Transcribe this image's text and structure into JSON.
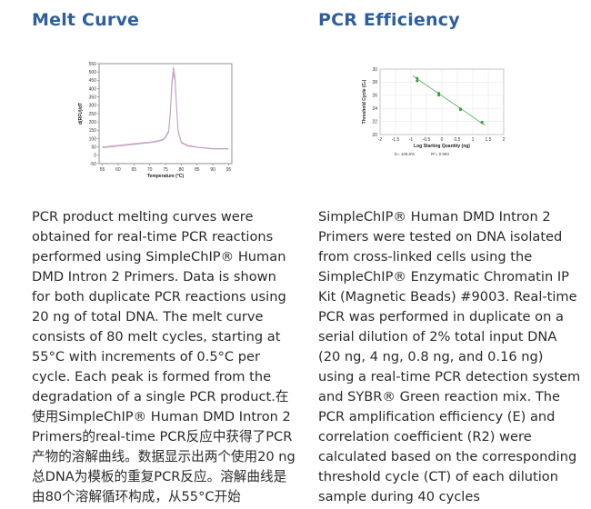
{
  "melt_curve": {
    "title": "Melt Curve",
    "description": "PCR product melting curves were obtained for real-time PCR reactions performed using SimpleChIP® Human DMD Intron 2 Primers. Data is shown for both duplicate PCR reactions using 20 ng of total DNA. The melt curve consists of 80 melt cycles, starting at 55°C with increments of 0.5°C per cycle. Each peak is formed from the degradation of a single PCR product.在使用SimpleChIP® Human DMD Intron 2 Primers的real-time PCR反应中获得了PCR产物的溶解曲线。数据显示出两个使用20 ng总DNA为模板的重复PCR反应。溶解曲线是由80个溶解循环构成，从55°C开始"
  },
  "pcr_efficiency": {
    "title": "PCR Efficiency",
    "description": "SimpleChIP® Human DMD Intron 2 Primers were tested on DNA isolated from cross-linked cells using the SimpleChIP® Enzymatic Chromatin IP Kit (Magnetic Beads) #9003. Real-time PCR was performed in duplicate on a serial dilution of 2% total input DNA (20 ng, 4 ng, 0.8 ng, and 0.16 ng) using a real-time PCR detection system and SYBR® Green reaction mix. The PCR amplification efficiency (E) and correlation coefficient (R2) were calculated based on the corresponding threshold cycle (CT) of each dilution sample during 40 cycles",
    "stats": {
      "efficiency": "E= 108.6%",
      "r2": "R²= 0.993"
    }
  },
  "colors": {
    "heading": "#2e5f9c",
    "melt_line": "#d7a3b8",
    "efficiency_line": "#5fb660"
  },
  "chart_data": [
    {
      "type": "line",
      "xlabel": "Temperature (°C)",
      "ylabel": "d(RFU)/dT",
      "xlim": [
        54,
        96
      ],
      "ylim": [
        -50,
        550
      ],
      "x_ticks": [
        "55",
        "60",
        "65",
        "70",
        "75",
        "80",
        "85",
        "90",
        "95"
      ],
      "y_ticks": [
        "-50",
        "0",
        "50",
        "100",
        "150",
        "200",
        "250",
        "300",
        "350",
        "400",
        "450",
        "500",
        "550"
      ],
      "grid": false,
      "series": [
        {
          "x": [
            55,
            60,
            65,
            70,
            72,
            74,
            75,
            76,
            76.5,
            77,
            77.5,
            78,
            78.5,
            79,
            80,
            82,
            85,
            90,
            95
          ],
          "values": [
            50,
            60,
            70,
            80,
            85,
            95,
            110,
            150,
            260,
            440,
            530,
            480,
            300,
            150,
            80,
            60,
            50,
            40,
            40
          ]
        },
        {
          "x": [
            55,
            60,
            65,
            70,
            72,
            74,
            75,
            76,
            76.5,
            77,
            77.5,
            78,
            78.5,
            79,
            80,
            82,
            85,
            90,
            95
          ],
          "values": [
            45,
            55,
            65,
            75,
            80,
            90,
            105,
            140,
            240,
            410,
            500,
            450,
            280,
            140,
            75,
            55,
            48,
            38,
            38
          ]
        }
      ]
    },
    {
      "type": "scatter",
      "xlabel": "Log Starting Quantity (ng)",
      "ylabel": "Threshold Cycle (Cₜ)",
      "xlim": [
        -2,
        2
      ],
      "ylim": [
        20,
        30
      ],
      "x_ticks": [
        "-2",
        "-1.5",
        "-1",
        "-0.5",
        "0",
        "0.5",
        "1",
        "1.5",
        "2"
      ],
      "y_ticks": [
        "20",
        "22",
        "24",
        "26",
        "28",
        "30"
      ],
      "grid": true,
      "points": {
        "x": [
          -0.8,
          -0.8,
          -0.1,
          -0.1,
          0.6,
          0.6,
          1.3,
          1.3
        ],
        "y": [
          28.6,
          28.2,
          26.3,
          26.0,
          23.9,
          23.8,
          21.9,
          21.8
        ]
      },
      "fit_line": {
        "x": [
          -0.95,
          1.4
        ],
        "y": [
          29.0,
          21.4
        ]
      }
    }
  ]
}
